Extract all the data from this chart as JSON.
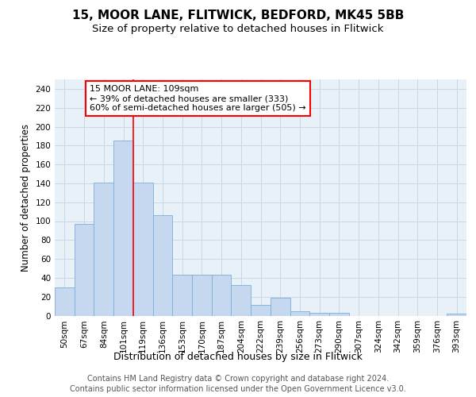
{
  "title1": "15, MOOR LANE, FLITWICK, BEDFORD, MK45 5BB",
  "title2": "Size of property relative to detached houses in Flitwick",
  "xlabel": "Distribution of detached houses by size in Flitwick",
  "ylabel": "Number of detached properties",
  "categories": [
    "50sqm",
    "67sqm",
    "84sqm",
    "101sqm",
    "119sqm",
    "136sqm",
    "153sqm",
    "170sqm",
    "187sqm",
    "204sqm",
    "222sqm",
    "239sqm",
    "256sqm",
    "273sqm",
    "290sqm",
    "307sqm",
    "324sqm",
    "342sqm",
    "359sqm",
    "376sqm",
    "393sqm"
  ],
  "values": [
    30,
    97,
    141,
    185,
    141,
    106,
    43,
    43,
    43,
    32,
    11,
    19,
    5,
    3,
    3,
    0,
    0,
    0,
    0,
    0,
    2
  ],
  "bar_color": "#c5d8f0",
  "bar_edge_color": "#7aaed6",
  "grid_color": "#c8d8e8",
  "background_color": "#e8f0f8",
  "red_line_index": 4,
  "annotation_text_line1": "15 MOOR LANE: 109sqm",
  "annotation_text_line2": "← 39% of detached houses are smaller (333)",
  "annotation_text_line3": "60% of semi-detached houses are larger (505) →",
  "ylim": [
    0,
    250
  ],
  "yticks": [
    0,
    20,
    40,
    60,
    80,
    100,
    120,
    140,
    160,
    180,
    200,
    220,
    240
  ],
  "footnote_line1": "Contains HM Land Registry data © Crown copyright and database right 2024.",
  "footnote_line2": "Contains public sector information licensed under the Open Government Licence v3.0.",
  "title1_fontsize": 11,
  "title2_fontsize": 9.5,
  "xlabel_fontsize": 9,
  "ylabel_fontsize": 8.5,
  "tick_fontsize": 7.5,
  "annot_fontsize": 8,
  "footnote_fontsize": 7
}
